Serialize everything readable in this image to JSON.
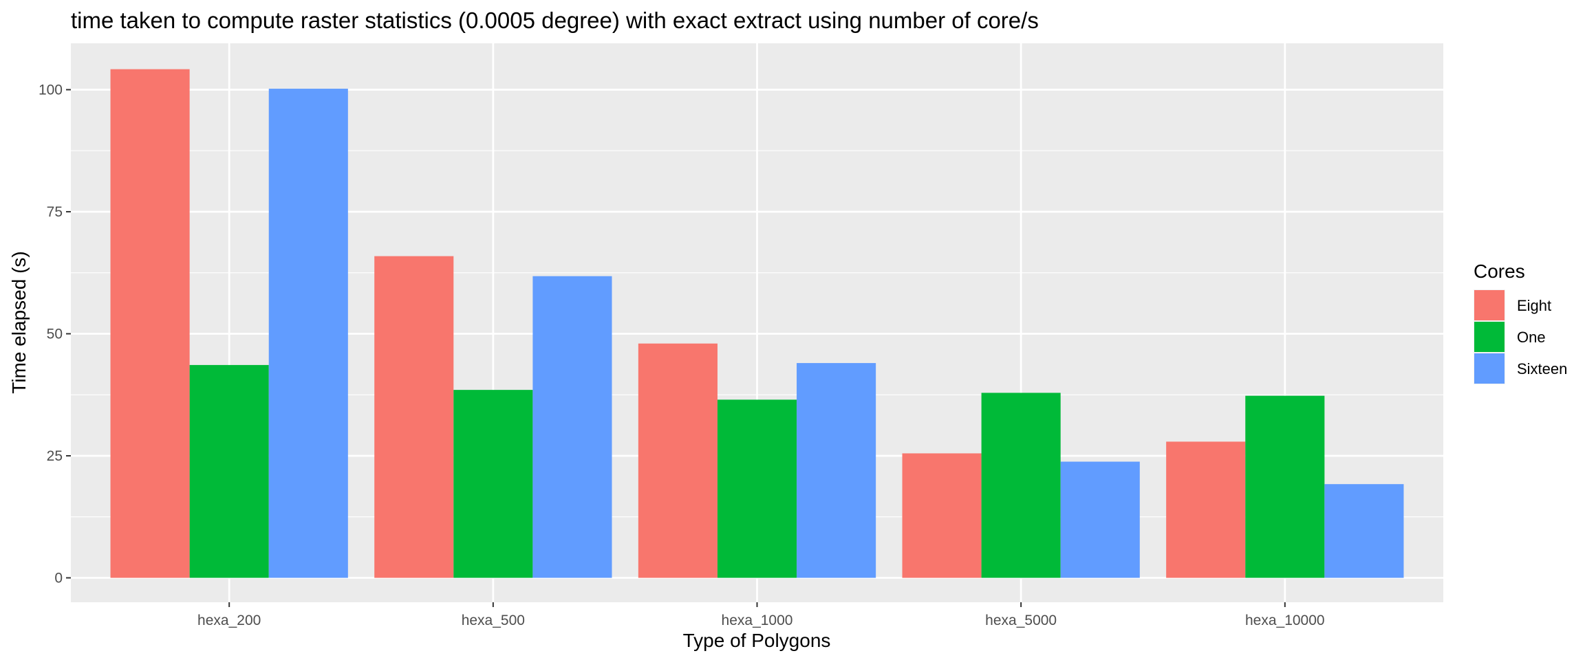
{
  "chart_data": {
    "type": "bar",
    "title": "time taken to compute raster statistics (0.0005 degree) with exact extract using number of core/s",
    "xlabel": "Type of Polygons",
    "ylabel": "Time elapsed (s)",
    "categories": [
      "hexa_200",
      "hexa_500",
      "hexa_1000",
      "hexa_5000",
      "hexa_10000"
    ],
    "series": [
      {
        "name": "Eight",
        "color": "#F8766D",
        "values": [
          104.2,
          65.9,
          48.0,
          25.5,
          27.9
        ]
      },
      {
        "name": "One",
        "color": "#00BA38",
        "values": [
          43.6,
          38.5,
          36.5,
          37.9,
          37.3
        ]
      },
      {
        "name": "Sixteen",
        "color": "#619CFF",
        "values": [
          100.2,
          61.8,
          44.0,
          23.8,
          19.2
        ]
      }
    ],
    "ylim": [
      -5,
      109.5
    ],
    "yticks": [
      0,
      25,
      50,
      75,
      100
    ],
    "grid": true,
    "legend": {
      "title": "Cores",
      "position": "right"
    },
    "panel_color": "#EBEBEB",
    "grid_color": "#FFFFFF"
  }
}
